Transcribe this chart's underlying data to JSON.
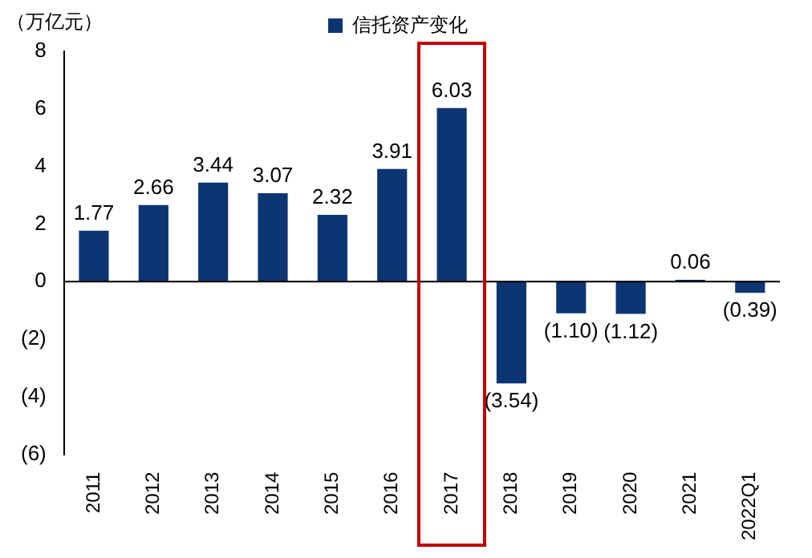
{
  "chart_data": {
    "type": "bar",
    "ylabel": "（万亿元）",
    "categories": [
      "2011",
      "2012",
      "2013",
      "2014",
      "2015",
      "2016",
      "2017",
      "2018",
      "2019",
      "2020",
      "2021",
      "2022Q1"
    ],
    "series": [
      {
        "name": "信托资产变化",
        "color": "#0c3572",
        "values": [
          1.77,
          2.66,
          3.44,
          3.07,
          2.32,
          3.91,
          6.03,
          -3.54,
          -1.1,
          -1.12,
          0.06,
          -0.39
        ],
        "value_labels": [
          "1.77",
          "2.66",
          "3.44",
          "3.07",
          "2.32",
          "3.91",
          "6.03",
          "(3.54)",
          "(1.10)",
          "(1.12)",
          "0.06",
          "(0.39)"
        ]
      }
    ],
    "ylim": [
      -6,
      8
    ],
    "yticks": [
      8,
      6,
      4,
      2,
      0,
      {
        "value": -2,
        "label": "(2)"
      },
      {
        "value": -4,
        "label": "(4)"
      },
      {
        "value": -6,
        "label": "(6)"
      }
    ],
    "ref_lines": [
      {
        "axis": "y",
        "value": 0,
        "color": "#000000"
      }
    ],
    "grid": false,
    "legend": "top"
  }
}
